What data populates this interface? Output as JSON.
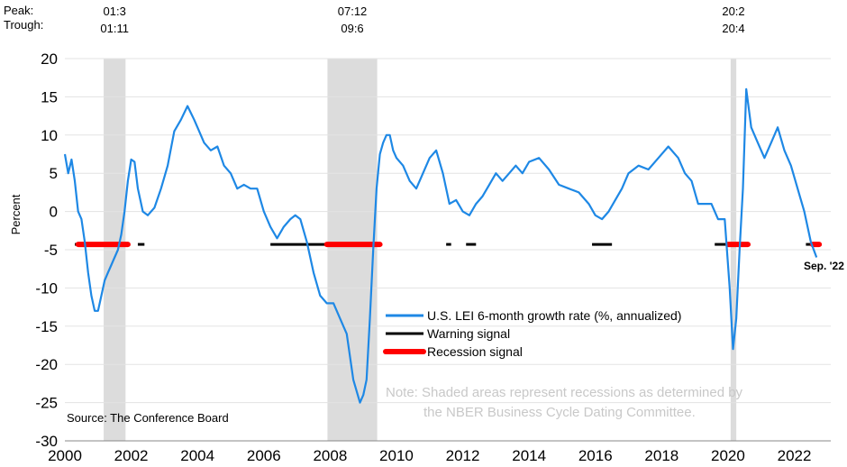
{
  "header": {
    "peak_label": "Peak:",
    "trough_label": "Trough:"
  },
  "recessions": [
    {
      "start": 2001.17,
      "end": 2001.83,
      "peak": "01:3",
      "trough": "01:11"
    },
    {
      "start": 2007.92,
      "end": 2009.42,
      "peak": "07:12",
      "trough": "09:6"
    },
    {
      "start": 2020.08,
      "end": 2020.25,
      "peak": "20:2",
      "trough": "20:4"
    }
  ],
  "chart_data": {
    "type": "line",
    "ylabel": "Percent",
    "xlim": [
      2000,
      2023.1
    ],
    "ylim": [
      -30,
      20
    ],
    "x_ticks": [
      {
        "value": 2000,
        "label": "2000"
      },
      {
        "value": 2002,
        "label": "2002"
      },
      {
        "value": 2004,
        "label": "2004"
      },
      {
        "value": 2006,
        "label": "2006"
      },
      {
        "value": 2008,
        "label": "2008"
      },
      {
        "value": 2010,
        "label": "2010"
      },
      {
        "value": 2012,
        "label": "2012"
      },
      {
        "value": 2014,
        "label": "2014"
      },
      {
        "value": 2016,
        "label": "2016"
      },
      {
        "value": 2018,
        "label": "2018"
      },
      {
        "value": 2020,
        "label": "2020"
      },
      {
        "value": 2022,
        "label": "2022"
      }
    ],
    "y_ticks": [
      {
        "value": 20,
        "label": "20"
      },
      {
        "value": 15,
        "label": "15"
      },
      {
        "value": 10,
        "label": "10"
      },
      {
        "value": 5,
        "label": "5"
      },
      {
        "value": 0,
        "label": "0"
      },
      {
        "value": -5,
        "label": "-5"
      },
      {
        "value": -10,
        "label": "-10"
      },
      {
        "value": -15,
        "label": "-15"
      },
      {
        "value": -20,
        "label": "-20"
      },
      {
        "value": -25,
        "label": "-25"
      },
      {
        "value": -30,
        "label": "-30"
      }
    ],
    "gridlines": true,
    "series": [
      {
        "name": "U.S. LEI 6-month growth rate (%, annualized)",
        "color": "#1e88e5",
        "x": [
          2000.0,
          2000.1,
          2000.2,
          2000.3,
          2000.4,
          2000.5,
          2000.6,
          2000.7,
          2000.8,
          2000.9,
          2001.0,
          2001.1,
          2001.2,
          2001.3,
          2001.4,
          2001.5,
          2001.6,
          2001.7,
          2001.8,
          2001.9,
          2002.0,
          2002.1,
          2002.2,
          2002.35,
          2002.5,
          2002.7,
          2002.9,
          2003.1,
          2003.3,
          2003.5,
          2003.7,
          2003.9,
          2004.0,
          2004.2,
          2004.4,
          2004.6,
          2004.8,
          2005.0,
          2005.2,
          2005.4,
          2005.6,
          2005.8,
          2006.0,
          2006.2,
          2006.4,
          2006.6,
          2006.8,
          2006.95,
          2007.1,
          2007.3,
          2007.5,
          2007.7,
          2007.9,
          2008.1,
          2008.3,
          2008.5,
          2008.7,
          2008.9,
          2009.0,
          2009.1,
          2009.2,
          2009.3,
          2009.4,
          2009.5,
          2009.6,
          2009.7,
          2009.8,
          2009.9,
          2010.0,
          2010.2,
          2010.4,
          2010.6,
          2010.8,
          2011.0,
          2011.2,
          2011.4,
          2011.6,
          2011.8,
          2012.0,
          2012.2,
          2012.4,
          2012.6,
          2012.8,
          2013.0,
          2013.2,
          2013.4,
          2013.6,
          2013.8,
          2014.0,
          2014.3,
          2014.6,
          2014.9,
          2015.2,
          2015.5,
          2015.8,
          2016.0,
          2016.2,
          2016.4,
          2016.6,
          2016.8,
          2017.0,
          2017.3,
          2017.6,
          2017.9,
          2018.2,
          2018.5,
          2018.7,
          2018.9,
          2019.1,
          2019.3,
          2019.5,
          2019.7,
          2019.9,
          2020.05,
          2020.15,
          2020.25,
          2020.35,
          2020.45,
          2020.55,
          2020.7,
          2020.9,
          2021.1,
          2021.3,
          2021.5,
          2021.7,
          2021.9,
          2022.1,
          2022.3,
          2022.5,
          2022.67
        ],
        "y": [
          7.5,
          5,
          6.8,
          4,
          0,
          -1,
          -4,
          -8,
          -11,
          -13,
          -13,
          -11,
          -9,
          -8,
          -7,
          -6,
          -5,
          -3,
          0,
          4,
          6.8,
          6.5,
          3,
          0,
          -0.5,
          0.5,
          3,
          6,
          10.5,
          12,
          13.8,
          12,
          11,
          9,
          8,
          8.5,
          6,
          5,
          3,
          3.5,
          3,
          3,
          0,
          -2,
          -3.5,
          -2,
          -1,
          -0.5,
          -1,
          -4,
          -8,
          -11,
          -12,
          -12,
          -14,
          -16,
          -22,
          -25,
          -24,
          -22,
          -14,
          -5,
          3,
          7.5,
          9,
          10,
          10,
          8,
          7,
          6,
          4,
          3,
          5,
          7,
          8,
          5,
          1,
          1.5,
          0,
          -0.5,
          1,
          2,
          3.5,
          5,
          4,
          5,
          6,
          5,
          6.5,
          7,
          5.5,
          3.5,
          3,
          2.5,
          1,
          -0.5,
          -1,
          0,
          1.5,
          3,
          5,
          6,
          5.5,
          7,
          8.5,
          7,
          5,
          4,
          1,
          1,
          1,
          -1,
          -1,
          -10,
          -18,
          -14,
          -5,
          3,
          16,
          11,
          9,
          7,
          9,
          11,
          8,
          6,
          3,
          0,
          -4,
          -6
        ]
      }
    ],
    "signals": {
      "warning": {
        "name": "Warning signal",
        "color": "#000000",
        "y": -4.3,
        "ranges": [
          [
            2000.3,
            2000.4
          ],
          [
            2001.5,
            2001.6
          ],
          [
            2002.2,
            2002.4
          ],
          [
            2006.2,
            2007.9
          ],
          [
            2011.5,
            2011.65
          ],
          [
            2012.1,
            2012.4
          ],
          [
            2015.9,
            2016.5
          ],
          [
            2019.6,
            2020.0
          ],
          [
            2022.35,
            2022.5
          ]
        ]
      },
      "recession": {
        "name": "Recession signal",
        "color": "#ff0000",
        "y": -4.3,
        "ranges": [
          [
            2000.4,
            2001.9
          ],
          [
            2007.9,
            2009.5
          ],
          [
            2020.0,
            2020.6
          ],
          [
            2022.55,
            2022.75
          ]
        ]
      }
    },
    "end_label": "Sep. '22",
    "note": [
      "Note: Shaded areas represent recessions as determined by",
      "the NBER Business Cycle Dating Committee."
    ],
    "source": "Source: The Conference Board",
    "legend_position": "center-right"
  }
}
